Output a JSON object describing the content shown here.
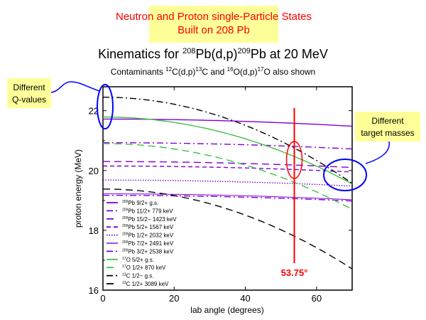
{
  "banner": {
    "line1": "Neutron and Proton single-Particle States",
    "line2": "Built on 208 Pb"
  },
  "callouts": {
    "q_values": {
      "line1": "Different",
      "line2": "Q-values"
    },
    "target_masses": {
      "line1": "Different",
      "line2": "target masses"
    }
  },
  "marker": {
    "angle": 53.75,
    "label": "53.75°"
  },
  "colors": {
    "purple": "#8000d8",
    "purple_light": "#b070e8",
    "green": "#40c040",
    "black": "#000000",
    "red": "#ff0000",
    "blue": "#0000ff",
    "yellow": "#ffff99"
  },
  "chart_data": {
    "type": "line",
    "title": {
      "pre": "Kinematics for ",
      "sup1": "208",
      "mid": "Pb(d,p)",
      "sup2": "209",
      "post": "Pb at 20 MeV"
    },
    "subtitle": {
      "pre": "Contaminants ",
      "s1": "12",
      "t1": "C(d,p)",
      "s2": "13",
      "t2": "C and ",
      "s3": "16",
      "t3": "O(d,p)",
      "s4": "17",
      "t4": "O also shown"
    },
    "xlabel": "lab angle (degrees)",
    "ylabel": "proton energy (MeV)",
    "xlim": [
      0,
      70
    ],
    "ylim": [
      16,
      22.8
    ],
    "xticks": [
      "0",
      "20",
      "40",
      "60"
    ],
    "xtick_values": [
      0,
      20,
      40,
      60
    ],
    "yticks": [
      "16",
      "18",
      "20",
      "22"
    ],
    "ytick_values": [
      16,
      18,
      20,
      22
    ],
    "legend_position": "bottom-left",
    "series": [
      {
        "sup": "209",
        "name": "Pb 9/2+ g.s.",
        "color": "#8000d8",
        "style": "solid",
        "e0": 21.72,
        "e70": 21.48
      },
      {
        "sup": "209",
        "name": "Pb 11/2+ 779 keV",
        "color": "#8000d8",
        "style": "dashdot",
        "e0": 20.93,
        "e70": 20.72
      },
      {
        "sup": "209",
        "name": "Pb 15/2− 1423 keV",
        "color": "#8000d8",
        "style": "longdash",
        "e0": 20.3,
        "e70": 20.1
      },
      {
        "sup": "209",
        "name": "Pb 5/2+ 1567 keV",
        "color": "#8000d8",
        "style": "dash",
        "e0": 20.15,
        "e70": 19.95
      },
      {
        "sup": "209",
        "name": "Pb 1/2+ 2032 keV",
        "color": "#8000d8",
        "style": "dot",
        "e0": 19.68,
        "e70": 19.48
      },
      {
        "sup": "209",
        "name": "Pb 7/2+ 2491 keV",
        "color": "#8000d8",
        "style": "thin",
        "e0": 19.22,
        "e70": 19.02
      },
      {
        "sup": "209",
        "name": "Pb 3/2+ 2538 keV",
        "color": "#8000d8",
        "style": "dashdot",
        "e0": 19.17,
        "e70": 18.98
      },
      {
        "sup": "17",
        "name": "O 5/2+ g.s.",
        "color": "#40c040",
        "style": "solid",
        "e0": 21.79,
        "e70": 19.55
      },
      {
        "sup": "17",
        "name": "O 1/2+ 870 keV",
        "color": "#40c040",
        "style": "longdash",
        "e0": 20.9,
        "e70": 18.7
      },
      {
        "sup": "13",
        "name": "C 1/2− g.s.",
        "color": "#000000",
        "style": "dashdot",
        "e0": 22.45,
        "e70": 19.57
      },
      {
        "sup": "13",
        "name": "C 1/2+ 3089 keV",
        "color": "#000000",
        "style": "longdash",
        "e0": 19.38,
        "e70": 16.71
      }
    ]
  }
}
